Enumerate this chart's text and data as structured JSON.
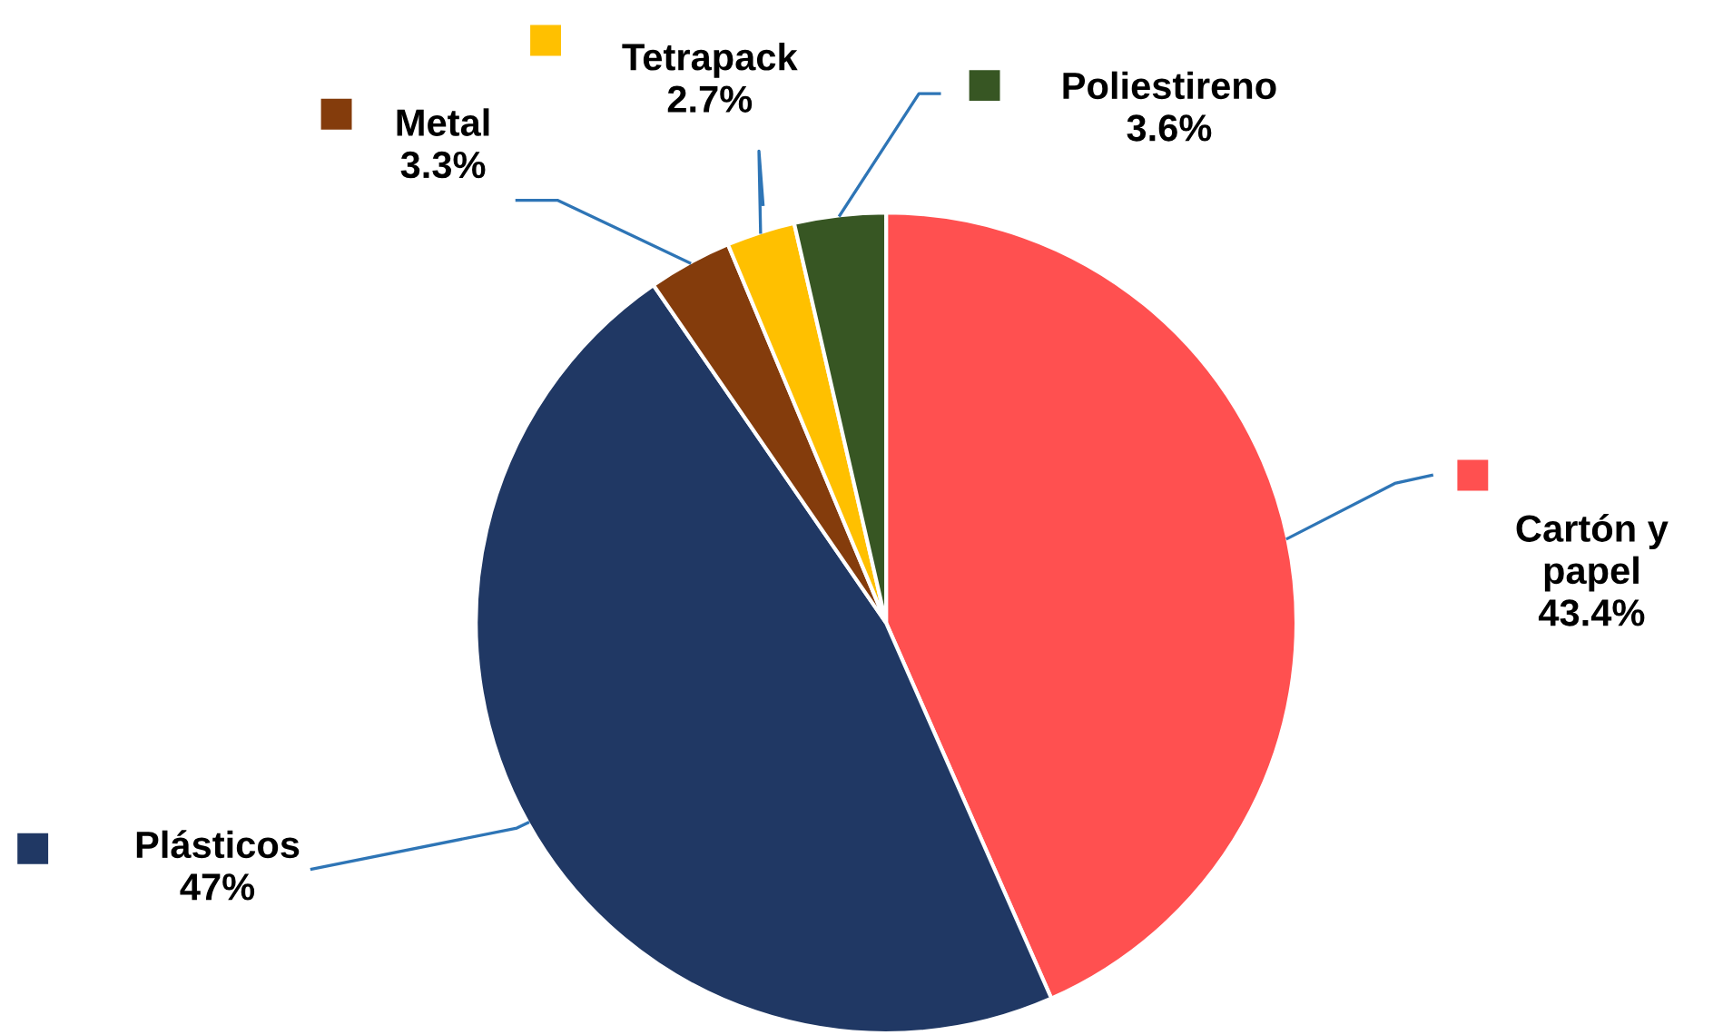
{
  "chart_data": {
    "type": "pie",
    "categories": [
      "Cartón y papel",
      "Plásticos",
      "Metal",
      "Tetrapack",
      "Poliestireno"
    ],
    "values": [
      43.4,
      47,
      3.3,
      2.7,
      3.6
    ],
    "value_labels": [
      "43.4%",
      "47%",
      "3.3%",
      "2.7%",
      "3.6%"
    ],
    "colors": [
      "#ff5050",
      "#203864",
      "#843c0c",
      "#ffc000",
      "#375623"
    ],
    "legend": "top"
  }
}
